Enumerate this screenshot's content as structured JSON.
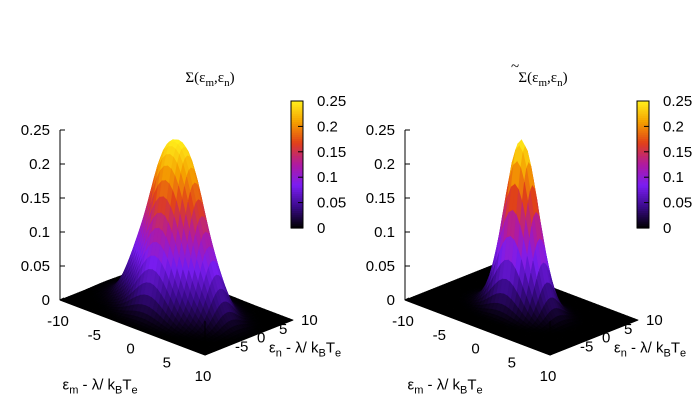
{
  "chart_data": [
    {
      "type": "surface",
      "title_base": "Σ(ε",
      "title_sub_m": "m",
      "title_mid": ",ε",
      "title_sub_n": "n",
      "title_end": ")",
      "tilde": false,
      "xlabel": {
        "base": "ε",
        "sub1": "m",
        "mid": " - λ/ k",
        "sub2": "B",
        "mid2": "T",
        "sub3": "e"
      },
      "ylabel": {
        "base": "ε",
        "sub1": "n",
        "mid": " - λ/ k",
        "sub2": "B",
        "mid2": "T",
        "sub3": "e"
      },
      "x_range": [
        -10,
        10
      ],
      "y_range": [
        -10,
        10
      ],
      "z_range": [
        0,
        0.25
      ],
      "x_ticks": [
        "-10",
        "-5",
        "0",
        "5",
        "10"
      ],
      "y_ticks": [
        "-5",
        "0",
        "5",
        "10"
      ],
      "z_ticks": [
        "0",
        "0.05",
        "0.1",
        "0.15",
        "0.2",
        "0.25"
      ],
      "colorbar_ticks": [
        "0",
        "0.05",
        "0.1",
        "0.15",
        "0.2",
        "0.25"
      ],
      "peak": {
        "x": 0,
        "y": 0,
        "z": 0.25
      },
      "description_of_shape": "peak at origin with broad ridges along the axes"
    },
    {
      "type": "surface",
      "title_base": "Σ(ε",
      "title_sub_m": "m",
      "title_mid": ",ε",
      "title_sub_n": "n",
      "title_end": ")",
      "tilde": true,
      "xlabel": {
        "base": "ε",
        "sub1": "m",
        "mid": " - λ/ k",
        "sub2": "B",
        "mid2": "T",
        "sub3": "e"
      },
      "ylabel": {
        "base": "ε",
        "sub1": "n",
        "mid": " - λ/ k",
        "sub2": "B",
        "mid2": "T",
        "sub3": "e"
      },
      "x_range": [
        -10,
        10
      ],
      "y_range": [
        -10,
        10
      ],
      "z_range": [
        0,
        0.25
      ],
      "x_ticks": [
        "-10",
        "-5",
        "0",
        "5",
        "10"
      ],
      "y_ticks": [
        "-5",
        "0",
        "5",
        "10"
      ],
      "z_ticks": [
        "0",
        "0.05",
        "0.1",
        "0.15",
        "0.2",
        "0.25"
      ],
      "colorbar_ticks": [
        "0",
        "0.05",
        "0.1",
        "0.15",
        "0.2",
        "0.25"
      ],
      "peak": {
        "x": 0,
        "y": 0,
        "z": 0.25
      },
      "description_of_shape": "single gaussian peak at origin"
    }
  ],
  "palette": {
    "stops": [
      "#000000",
      "#3a0a8a",
      "#7a1df2",
      "#b01aa0",
      "#e0401a",
      "#f5a000",
      "#fff01c"
    ]
  }
}
